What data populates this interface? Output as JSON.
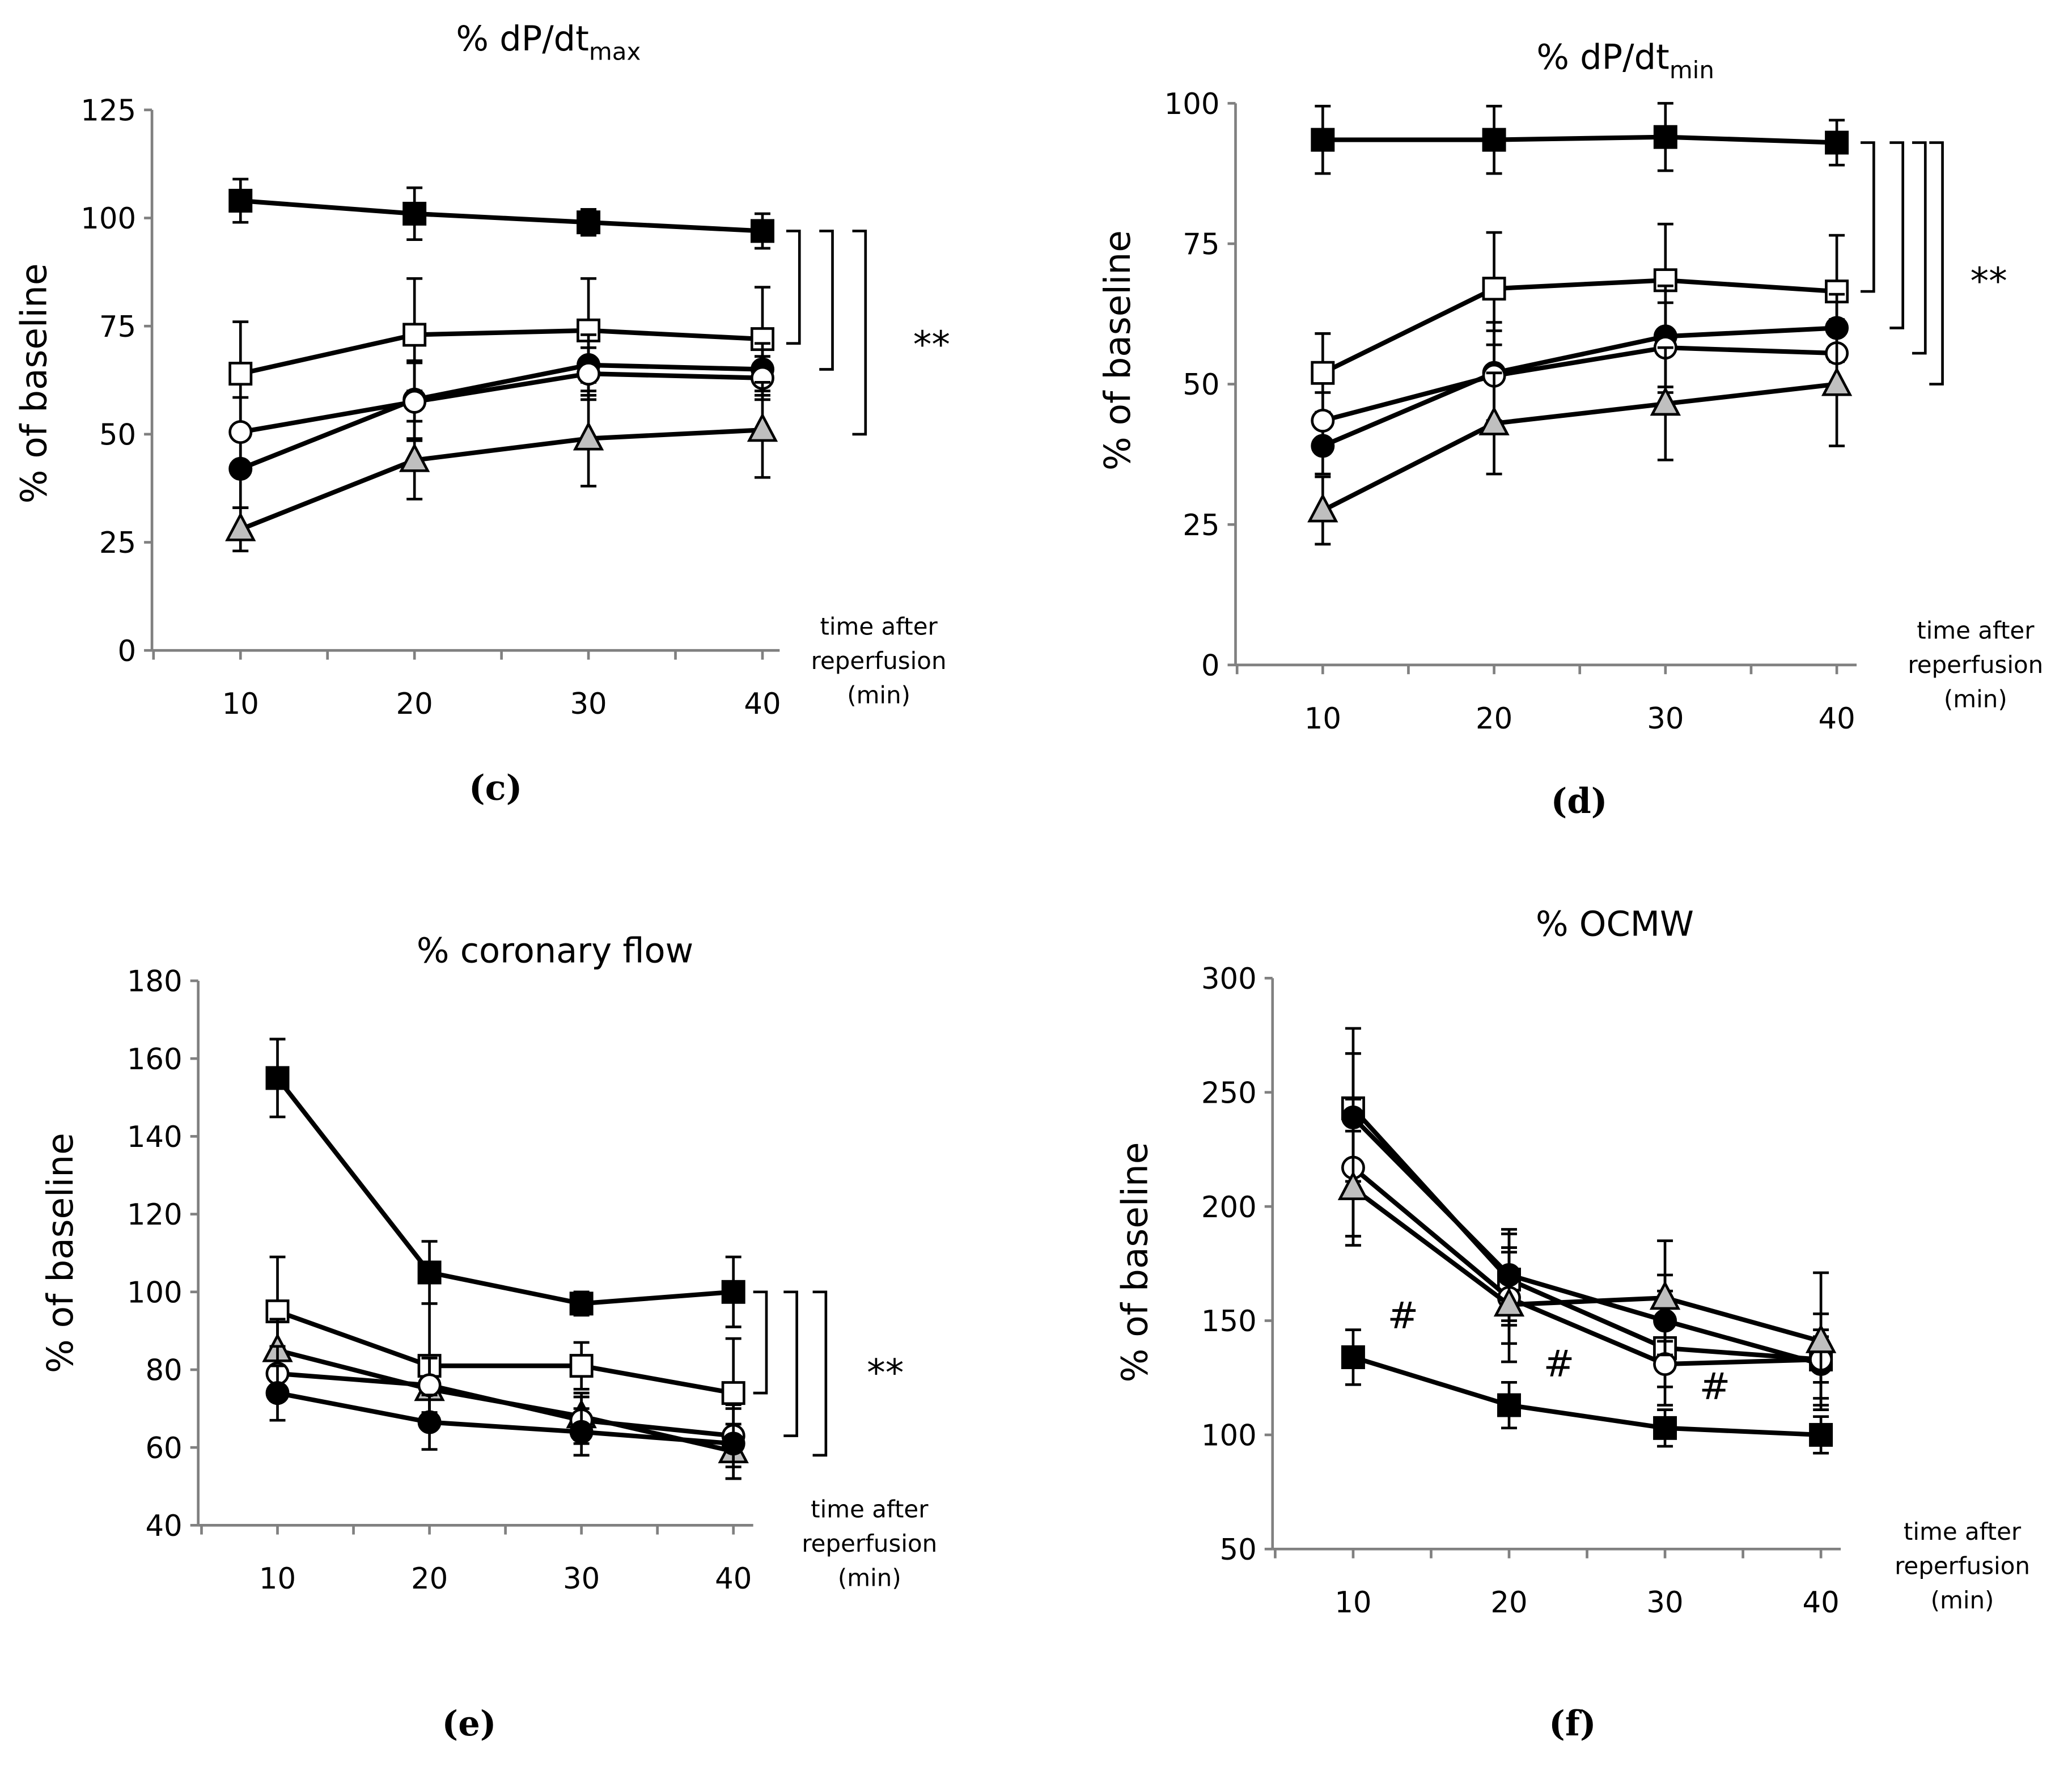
{
  "chart_data": [
    {
      "panel": "(c)",
      "type": "line",
      "title": "% dP/dt",
      "title_sub": "max",
      "ylabel": "% of baseline",
      "xlabel": [
        "time after",
        "reperfusion",
        "(min)"
      ],
      "x": [
        10,
        20,
        30,
        40
      ],
      "ylim": [
        0,
        125
      ],
      "yticks": [
        0,
        25,
        50,
        75,
        100,
        125
      ],
      "series": [
        {
          "marker": "filled-square",
          "values": [
            104,
            101,
            99,
            97
          ],
          "errors": [
            5,
            6,
            3,
            4
          ]
        },
        {
          "marker": "open-square",
          "values": [
            64,
            73,
            74,
            72
          ],
          "errors": [
            12,
            13,
            12,
            12
          ]
        },
        {
          "marker": "filled-circle",
          "values": [
            42,
            58,
            66,
            65
          ],
          "errors": [
            9,
            9,
            7,
            6
          ]
        },
        {
          "marker": "open-circle",
          "values": [
            50.5,
            57.5,
            64,
            63
          ],
          "errors": [
            8,
            9,
            6,
            5
          ]
        },
        {
          "marker": "gray-triangle",
          "values": [
            28,
            44,
            49,
            51
          ],
          "errors": [
            5,
            9,
            11,
            11
          ]
        }
      ],
      "brackets": [
        [
          97,
          71
        ],
        [
          97,
          65
        ],
        [
          97,
          50
        ]
      ],
      "significance": "**"
    },
    {
      "panel": "(d)",
      "type": "line",
      "title": "% dP/dt",
      "title_sub": "min",
      "ylabel": "% of baseline",
      "xlabel": [
        "time after",
        "reperfusion",
        "(min)"
      ],
      "x": [
        10,
        20,
        30,
        40
      ],
      "ylim": [
        0,
        100
      ],
      "yticks": [
        0,
        25,
        50,
        75,
        100
      ],
      "series": [
        {
          "marker": "filled-square",
          "values": [
            93.5,
            93.5,
            94,
            93
          ],
          "errors": [
            6,
            6,
            6,
            4
          ]
        },
        {
          "marker": "open-square",
          "values": [
            52,
            67,
            68.5,
            66.5
          ],
          "errors": [
            7,
            10,
            10,
            10
          ]
        },
        {
          "marker": "filled-circle",
          "values": [
            39,
            52,
            58.5,
            60
          ],
          "errors": [
            5,
            9,
            9,
            6
          ]
        },
        {
          "marker": "open-circle",
          "values": [
            43.5,
            51.5,
            56.5,
            55.5
          ],
          "errors": [
            5,
            8,
            8,
            6
          ]
        },
        {
          "marker": "gray-triangle",
          "values": [
            27.5,
            43,
            46.5,
            50
          ],
          "errors": [
            6,
            9,
            10,
            11
          ]
        }
      ],
      "brackets": [
        [
          93,
          66.5
        ],
        [
          93,
          60
        ],
        [
          93,
          55.5
        ],
        [
          93,
          50
        ]
      ],
      "significance": "**"
    },
    {
      "panel": "(e)",
      "type": "line",
      "title": "% coronary flow",
      "title_sub": "",
      "ylabel": "% of baseline",
      "xlabel": [
        "time after",
        "reperfusion",
        "(min)"
      ],
      "x": [
        10,
        20,
        30,
        40
      ],
      "ylim": [
        40,
        180
      ],
      "yticks": [
        40,
        60,
        80,
        100,
        120,
        140,
        160,
        180
      ],
      "series": [
        {
          "marker": "filled-square",
          "values": [
            155,
            105,
            97,
            100
          ],
          "errors": [
            10,
            8,
            3,
            9
          ]
        },
        {
          "marker": "open-square",
          "values": [
            95,
            81,
            81,
            74
          ],
          "errors": [
            14,
            16,
            6,
            14
          ]
        },
        {
          "marker": "gray-triangle",
          "values": [
            85,
            75,
            68,
            59
          ],
          "errors": [
            8,
            8,
            6,
            7
          ]
        },
        {
          "marker": "open-circle",
          "values": [
            79,
            76,
            67,
            63
          ],
          "errors": [
            7,
            7,
            6,
            8
          ]
        },
        {
          "marker": "filled-circle",
          "values": [
            74,
            66.5,
            64,
            61
          ],
          "errors": [
            7,
            7,
            6,
            9
          ]
        }
      ],
      "brackets": [
        [
          100,
          74
        ],
        [
          100,
          63
        ],
        [
          100,
          58
        ]
      ],
      "significance": "**"
    },
    {
      "panel": "(f)",
      "type": "line",
      "title": "% OCMW",
      "title_sub": "",
      "ylabel": "% of baseline",
      "xlabel": [
        "time after",
        "reperfusion",
        "(min)"
      ],
      "x": [
        10,
        20,
        30,
        40
      ],
      "ylim": [
        50,
        300
      ],
      "yticks": [
        50,
        100,
        150,
        200,
        250,
        300
      ],
      "series": [
        {
          "marker": "filled-square",
          "values": [
            134,
            113,
            103,
            100
          ],
          "errors": [
            12,
            10,
            8,
            8
          ]
        },
        {
          "marker": "open-square",
          "values": [
            243,
            168,
            138,
            133
          ],
          "errors": [
            35,
            20,
            25,
            20
          ]
        },
        {
          "marker": "filled-circle",
          "values": [
            239,
            170,
            150,
            131
          ],
          "errors": [
            28,
            20,
            20,
            15
          ]
        },
        {
          "marker": "open-circle",
          "values": [
            217,
            160,
            131,
            133
          ],
          "errors": [
            30,
            20,
            10,
            10
          ]
        },
        {
          "marker": "gray-triangle",
          "values": [
            208,
            157,
            160,
            141
          ],
          "errors": [
            25,
            25,
            25,
            30
          ]
        }
      ],
      "hash_marks": [
        10,
        20,
        30
      ],
      "hash_symbol": "#"
    }
  ],
  "colors": {
    "ink": "#000000",
    "triangle": "#bfbfbf",
    "axis": "#808080"
  }
}
